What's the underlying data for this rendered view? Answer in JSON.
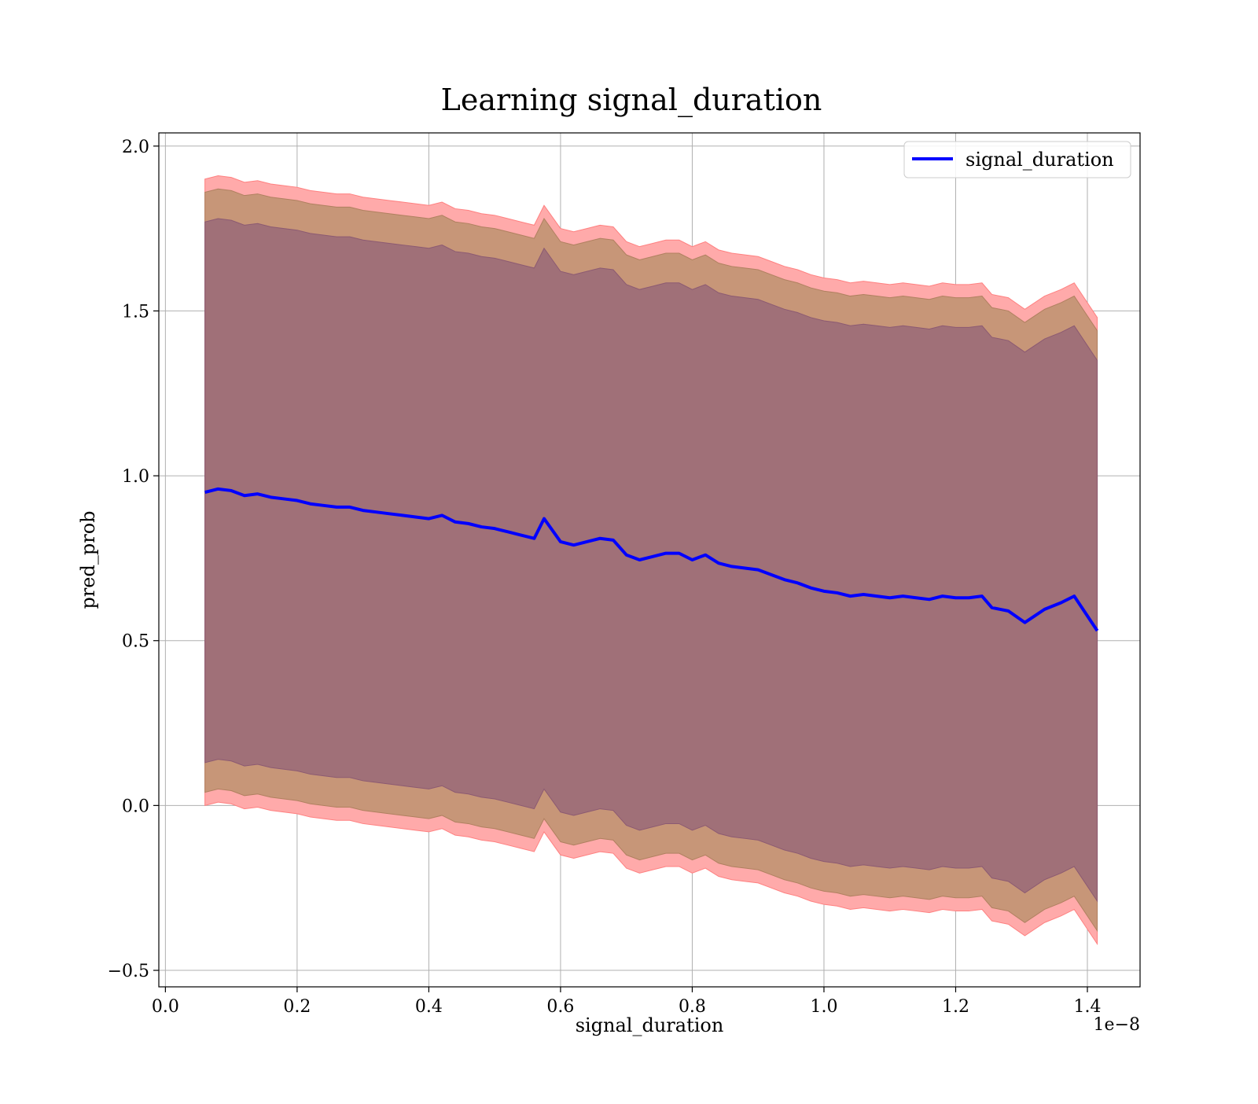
{
  "chart_data": {
    "type": "line",
    "title": "Learning signal_duration",
    "xlabel": "signal_duration",
    "ylabel": "pred_prob",
    "x_offset_label": "1e−8",
    "xlim": [
      -0.01,
      1.48
    ],
    "ylim": [
      -0.55,
      2.04
    ],
    "xticks": [
      0.0,
      0.2,
      0.4,
      0.6,
      0.8,
      1.0,
      1.2,
      1.4
    ],
    "xtick_labels": [
      "0.0",
      "0.2",
      "0.4",
      "0.6",
      "0.8",
      "1.0",
      "1.2",
      "1.4"
    ],
    "yticks": [
      -0.5,
      0.0,
      0.5,
      1.0,
      1.5,
      2.0
    ],
    "ytick_labels": [
      "−0.5",
      "0.0",
      "0.5",
      "1.0",
      "1.5",
      "2.0"
    ],
    "grid": true,
    "legend": {
      "position": "top-right",
      "entries": [
        "signal_duration"
      ]
    },
    "colors": {
      "line": "#0000ff",
      "outer_band": "#ffaaaa",
      "middle_band": "#c79678",
      "inner_band": "#a07078",
      "grid": "#b0b0b0"
    },
    "x": [
      0.06,
      0.08,
      0.1,
      0.12,
      0.14,
      0.16,
      0.18,
      0.2,
      0.22,
      0.24,
      0.26,
      0.28,
      0.3,
      0.32,
      0.34,
      0.36,
      0.38,
      0.4,
      0.42,
      0.44,
      0.46,
      0.48,
      0.5,
      0.52,
      0.54,
      0.56,
      0.575,
      0.6,
      0.62,
      0.64,
      0.66,
      0.68,
      0.7,
      0.72,
      0.74,
      0.76,
      0.78,
      0.8,
      0.82,
      0.84,
      0.86,
      0.88,
      0.9,
      0.92,
      0.94,
      0.96,
      0.98,
      1.0,
      1.02,
      1.04,
      1.06,
      1.08,
      1.1,
      1.12,
      1.14,
      1.16,
      1.18,
      1.2,
      1.22,
      1.24,
      1.255,
      1.28,
      1.305,
      1.335,
      1.36,
      1.38,
      1.415
    ],
    "series": [
      {
        "name": "signal_duration",
        "values": [
          0.95,
          0.96,
          0.955,
          0.94,
          0.945,
          0.935,
          0.93,
          0.925,
          0.915,
          0.91,
          0.905,
          0.905,
          0.895,
          0.89,
          0.885,
          0.88,
          0.875,
          0.87,
          0.88,
          0.86,
          0.855,
          0.845,
          0.84,
          0.83,
          0.82,
          0.81,
          0.87,
          0.8,
          0.79,
          0.8,
          0.81,
          0.805,
          0.76,
          0.745,
          0.755,
          0.765,
          0.765,
          0.745,
          0.76,
          0.735,
          0.725,
          0.72,
          0.715,
          0.7,
          0.685,
          0.675,
          0.66,
          0.65,
          0.645,
          0.635,
          0.64,
          0.635,
          0.63,
          0.635,
          0.63,
          0.625,
          0.635,
          0.63,
          0.63,
          0.635,
          0.6,
          0.59,
          0.555,
          0.595,
          0.615,
          0.635,
          0.53
        ]
      }
    ],
    "bands": {
      "outer_halfwidth": 0.95,
      "middle_halfwidth": 0.91,
      "inner_halfwidth": 0.82
    }
  }
}
